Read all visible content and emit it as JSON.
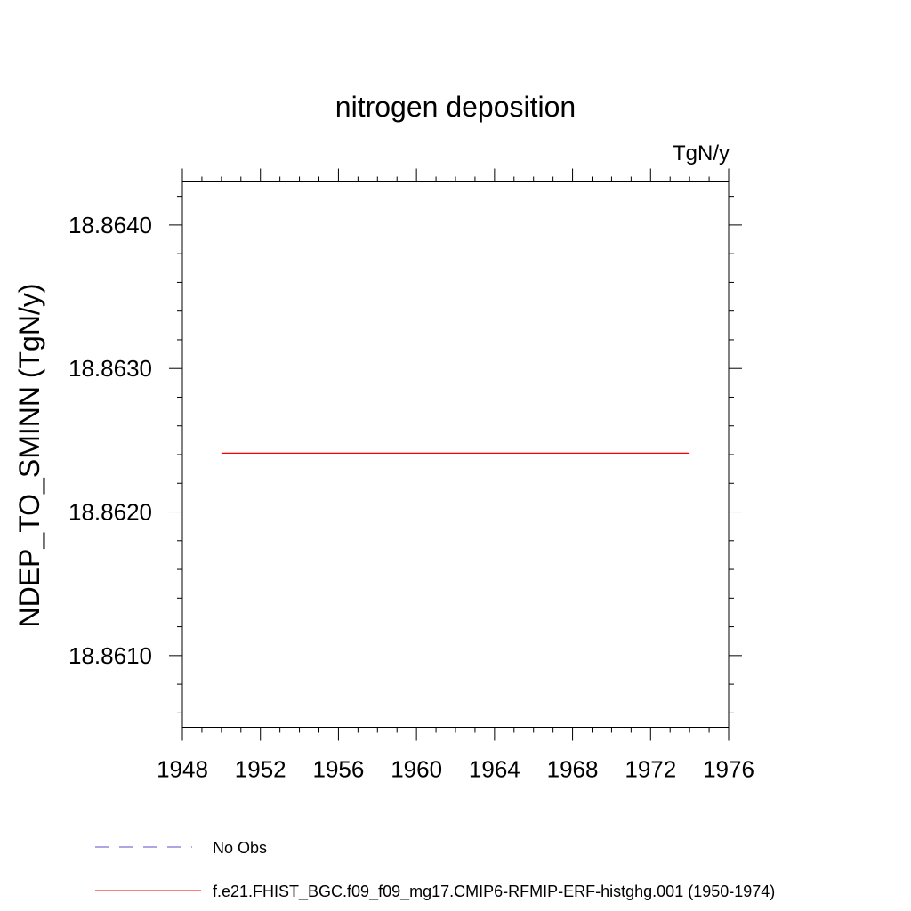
{
  "chart_data": {
    "type": "line",
    "title": "nitrogen deposition",
    "units_label": "TgN/y",
    "ylabel": "NDEP_TO_SMINN  (TgN/y)",
    "xlabel": "",
    "xlim": [
      1948,
      1976
    ],
    "ylim": [
      18.8605,
      18.8643
    ],
    "x_major_ticks": [
      1948,
      1952,
      1956,
      1960,
      1964,
      1968,
      1972,
      1976
    ],
    "x_tick_labels": [
      "1948",
      "1952",
      "1956",
      "1960",
      "1964",
      "1968",
      "1972",
      "1976"
    ],
    "y_major_ticks": [
      18.861,
      18.862,
      18.863,
      18.864
    ],
    "y_tick_labels": [
      "18.8610",
      "18.8620",
      "18.8630",
      "18.8640"
    ],
    "grid": false,
    "legend_position": "bottom",
    "series": [
      {
        "name": "f.e21.FHIST_BGC.f09_f09_mg17.CMIP6-RFMIP-ERF-histghg.001 (1950-1974)",
        "color": "#ff0000",
        "style": "solid",
        "x": [
          1950,
          1974
        ],
        "y": [
          18.86241,
          18.86241
        ]
      }
    ],
    "legend": [
      {
        "label": "No Obs",
        "color": "#5a4cc4",
        "style": "dashed"
      },
      {
        "label": "f.e21.FHIST_BGC.f09_f09_mg17.CMIP6-RFMIP-ERF-histghg.001 (1950-1974)",
        "color": "#ff0000",
        "style": "solid"
      }
    ]
  }
}
